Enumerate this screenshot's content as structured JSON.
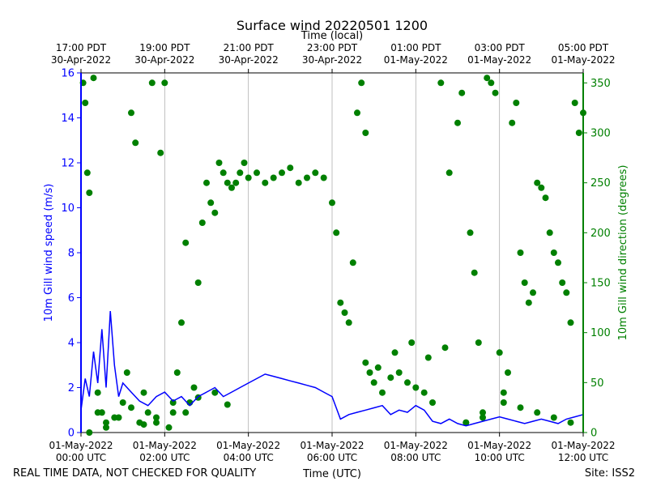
{
  "chart_data": {
    "type": "line+scatter",
    "title": "Surface wind 20220501 1200",
    "top_axis_label": "Time (local)",
    "xlabel": "Time (UTC)",
    "ylabel_left": "10m Gill wind speed (m/s)",
    "ylabel_right": "10m Gill wind direction (degrees)",
    "footer_left": "REAL TIME DATA, NOT CHECKED FOR QUALITY",
    "footer_right": "Site: ISS2",
    "xlim_hours": [
      0,
      12
    ],
    "ylim_left": [
      0,
      16
    ],
    "ylim_right": [
      0,
      360
    ],
    "left_ticks": [
      "0",
      "2",
      "4",
      "6",
      "8",
      "10",
      "12",
      "14",
      "16"
    ],
    "right_ticks": [
      "0",
      "50",
      "100",
      "150",
      "200",
      "250",
      "300",
      "350"
    ],
    "bottom_ticks": [
      {
        "hour": 0,
        "line1": "01-May-2022",
        "line2": "00:00 UTC"
      },
      {
        "hour": 2,
        "line1": "01-May-2022",
        "line2": "02:00 UTC"
      },
      {
        "hour": 4,
        "line1": "01-May-2022",
        "line2": "04:00 UTC"
      },
      {
        "hour": 6,
        "line1": "01-May-2022",
        "line2": "06:00 UTC"
      },
      {
        "hour": 8,
        "line1": "01-May-2022",
        "line2": "08:00 UTC"
      },
      {
        "hour": 10,
        "line1": "01-May-2022",
        "line2": "10:00 UTC"
      },
      {
        "hour": 12,
        "line1": "01-May-2022",
        "line2": "12:00 UTC"
      }
    ],
    "top_ticks": [
      {
        "hour": 0,
        "line1": "17:00 PDT",
        "line2": "30-Apr-2022"
      },
      {
        "hour": 2,
        "line1": "19:00 PDT",
        "line2": "30-Apr-2022"
      },
      {
        "hour": 4,
        "line1": "21:00 PDT",
        "line2": "30-Apr-2022"
      },
      {
        "hour": 6,
        "line1": "23:00 PDT",
        "line2": "30-Apr-2022"
      },
      {
        "hour": 8,
        "line1": "01:00 PDT",
        "line2": "01-May-2022"
      },
      {
        "hour": 10,
        "line1": "03:00 PDT",
        "line2": "01-May-2022"
      },
      {
        "hour": 12,
        "line1": "05:00 PDT",
        "line2": "01-May-2022"
      }
    ],
    "series": [
      {
        "name": "10m Gill wind speed",
        "axis": "left",
        "style": "line",
        "color": "#0000ff",
        "x": [
          0,
          0.1,
          0.2,
          0.3,
          0.4,
          0.5,
          0.6,
          0.7,
          0.8,
          0.9,
          1.0,
          1.2,
          1.4,
          1.6,
          1.8,
          2.0,
          2.2,
          2.4,
          2.6,
          2.8,
          3.0,
          3.2,
          3.4,
          3.6,
          3.8,
          4.0,
          4.2,
          4.4,
          4.6,
          4.8,
          5.0,
          5.2,
          5.4,
          5.6,
          5.8,
          6.0,
          6.2,
          6.4,
          6.6,
          6.8,
          7.0,
          7.2,
          7.4,
          7.6,
          7.8,
          8.0,
          8.2,
          8.4,
          8.6,
          8.8,
          9.0,
          9.2,
          9.4,
          9.6,
          9.8,
          10.0,
          10.2,
          10.4,
          10.6,
          10.8,
          11.0,
          11.2,
          11.4,
          11.6,
          11.8,
          12.0
        ],
        "values": [
          1.0,
          2.4,
          1.6,
          3.6,
          2.2,
          4.6,
          2.0,
          5.4,
          3.0,
          1.6,
          2.2,
          1.8,
          1.4,
          1.2,
          1.6,
          1.8,
          1.4,
          1.6,
          1.2,
          1.6,
          1.8,
          2.0,
          1.6,
          1.8,
          2.0,
          2.2,
          2.4,
          2.6,
          2.5,
          2.4,
          2.3,
          2.2,
          2.1,
          2.0,
          1.8,
          1.6,
          0.6,
          0.8,
          0.9,
          1.0,
          1.1,
          1.2,
          0.8,
          1.0,
          0.9,
          1.2,
          1.0,
          0.5,
          0.4,
          0.6,
          0.4,
          0.3,
          0.4,
          0.5,
          0.6,
          0.7,
          0.6,
          0.5,
          0.4,
          0.5,
          0.6,
          0.5,
          0.4,
          0.6,
          0.7,
          0.8
        ]
      },
      {
        "name": "10m Gill wind direction",
        "axis": "right",
        "style": "scatter",
        "color": "#008000",
        "x": [
          0.05,
          0.1,
          0.15,
          0.2,
          0.3,
          0.4,
          0.5,
          0.6,
          0.8,
          1.0,
          1.1,
          1.2,
          1.3,
          1.4,
          1.5,
          1.6,
          1.7,
          1.8,
          1.9,
          2.0,
          2.1,
          2.2,
          2.3,
          2.4,
          2.5,
          2.6,
          2.7,
          2.8,
          2.9,
          3.0,
          3.1,
          3.2,
          3.3,
          3.4,
          3.5,
          3.6,
          3.7,
          3.8,
          3.9,
          4.0,
          4.2,
          4.4,
          4.6,
          4.8,
          5.0,
          5.2,
          5.4,
          5.6,
          5.8,
          6.0,
          6.1,
          6.2,
          6.3,
          6.4,
          6.5,
          6.6,
          6.7,
          6.8,
          6.9,
          7.0,
          7.2,
          7.4,
          7.6,
          7.8,
          8.0,
          8.2,
          8.4,
          8.6,
          8.8,
          9.0,
          9.1,
          9.2,
          9.3,
          9.4,
          9.5,
          9.6,
          9.7,
          9.8,
          9.9,
          10.0,
          10.1,
          10.2,
          10.3,
          10.4,
          10.5,
          10.6,
          10.7,
          10.8,
          10.9,
          11.0,
          11.1,
          11.2,
          11.3,
          11.4,
          11.5,
          11.6,
          11.7,
          11.8,
          11.9,
          12.0,
          0.2,
          0.4,
          0.6,
          0.9,
          1.2,
          1.5,
          1.8,
          2.2,
          2.5,
          2.8,
          3.2,
          3.5,
          6.8,
          7.1,
          7.5,
          7.9,
          8.3,
          8.7,
          9.2,
          9.6,
          10.1,
          10.5,
          10.9,
          11.3,
          11.7
        ],
        "values": [
          350,
          330,
          260,
          240,
          355,
          40,
          20,
          10,
          15,
          30,
          60,
          320,
          290,
          10,
          40,
          20,
          350,
          15,
          280,
          350,
          5,
          20,
          60,
          110,
          190,
          30,
          45,
          150,
          210,
          250,
          230,
          220,
          270,
          260,
          250,
          245,
          250,
          260,
          270,
          255,
          260,
          250,
          255,
          260,
          265,
          250,
          255,
          260,
          255,
          230,
          200,
          130,
          120,
          110,
          170,
          320,
          350,
          300,
          60,
          50,
          40,
          55,
          60,
          50,
          45,
          40,
          30,
          350,
          260,
          310,
          340,
          10,
          200,
          160,
          90,
          20,
          355,
          350,
          340,
          80,
          40,
          60,
          310,
          330,
          180,
          150,
          130,
          140,
          250,
          245,
          235,
          200,
          180,
          170,
          150,
          140,
          110,
          330,
          300,
          320,
          0,
          20,
          5,
          15,
          25,
          8,
          10,
          30,
          20,
          35,
          40,
          28,
          70,
          65,
          80,
          90,
          75,
          85,
          10,
          15,
          30,
          25,
          20,
          15,
          10
        ]
      }
    ]
  }
}
